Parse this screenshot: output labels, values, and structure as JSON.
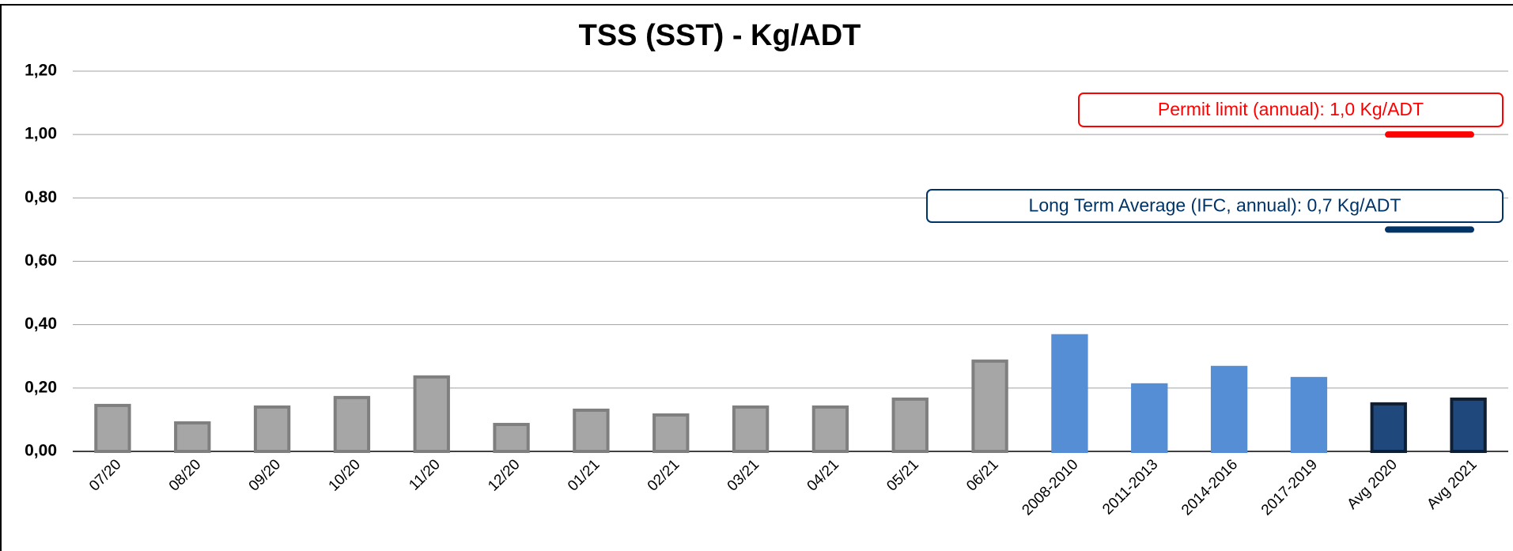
{
  "chart_data": {
    "type": "bar",
    "title": "TSS (SST) - Kg/ADT",
    "categories": [
      "07/20",
      "08/20",
      "09/20",
      "10/20",
      "11/20",
      "12/20",
      "01/21",
      "02/21",
      "03/21",
      "04/21",
      "05/21",
      "06/21",
      "2008-2010",
      "2011-2013",
      "2014-2016",
      "2017-2019",
      "Avg 2020",
      "Avg 2021"
    ],
    "values": [
      0.145,
      0.09,
      0.14,
      0.17,
      0.235,
      0.085,
      0.13,
      0.115,
      0.14,
      0.14,
      0.165,
      0.285,
      0.365,
      0.21,
      0.265,
      0.23,
      0.15,
      0.165
    ],
    "colors": [
      "#a6a6a6",
      "#a6a6a6",
      "#a6a6a6",
      "#a6a6a6",
      "#a6a6a6",
      "#a6a6a6",
      "#a6a6a6",
      "#a6a6a6",
      "#a6a6a6",
      "#a6a6a6",
      "#a6a6a6",
      "#a6a6a6",
      "#558ed5",
      "#558ed5",
      "#558ed5",
      "#558ed5",
      "#1f497d",
      "#1f497d"
    ],
    "edge_colors": [
      "#7f7f7f",
      "#7f7f7f",
      "#7f7f7f",
      "#7f7f7f",
      "#7f7f7f",
      "#7f7f7f",
      "#7f7f7f",
      "#7f7f7f",
      "#7f7f7f",
      "#7f7f7f",
      "#7f7f7f",
      "#7f7f7f",
      "#558ed5",
      "#558ed5",
      "#558ed5",
      "#558ed5",
      "#0f1f33",
      "#0f1f33"
    ],
    "ylim": [
      0,
      1.2
    ],
    "yticks": [
      {
        "value": 0,
        "label": "0,00"
      },
      {
        "value": 0.2,
        "label": "0,20"
      },
      {
        "value": 0.4,
        "label": "0,40"
      },
      {
        "value": 0.6,
        "label": "0,60"
      },
      {
        "value": 0.8,
        "label": "0,80"
      },
      {
        "value": 1.0,
        "label": "1,00"
      },
      {
        "value": 1.2,
        "label": "1,20"
      }
    ],
    "grid": true,
    "reference_lines": [
      {
        "label": "Permit limit (annual): 1,0 Kg/ADT",
        "value": 1.0,
        "color": "#ff0000"
      },
      {
        "label": "Long Term Average (IFC, annual): 0,7 Kg/ADT",
        "value": 0.7,
        "color": "#003366"
      }
    ]
  }
}
